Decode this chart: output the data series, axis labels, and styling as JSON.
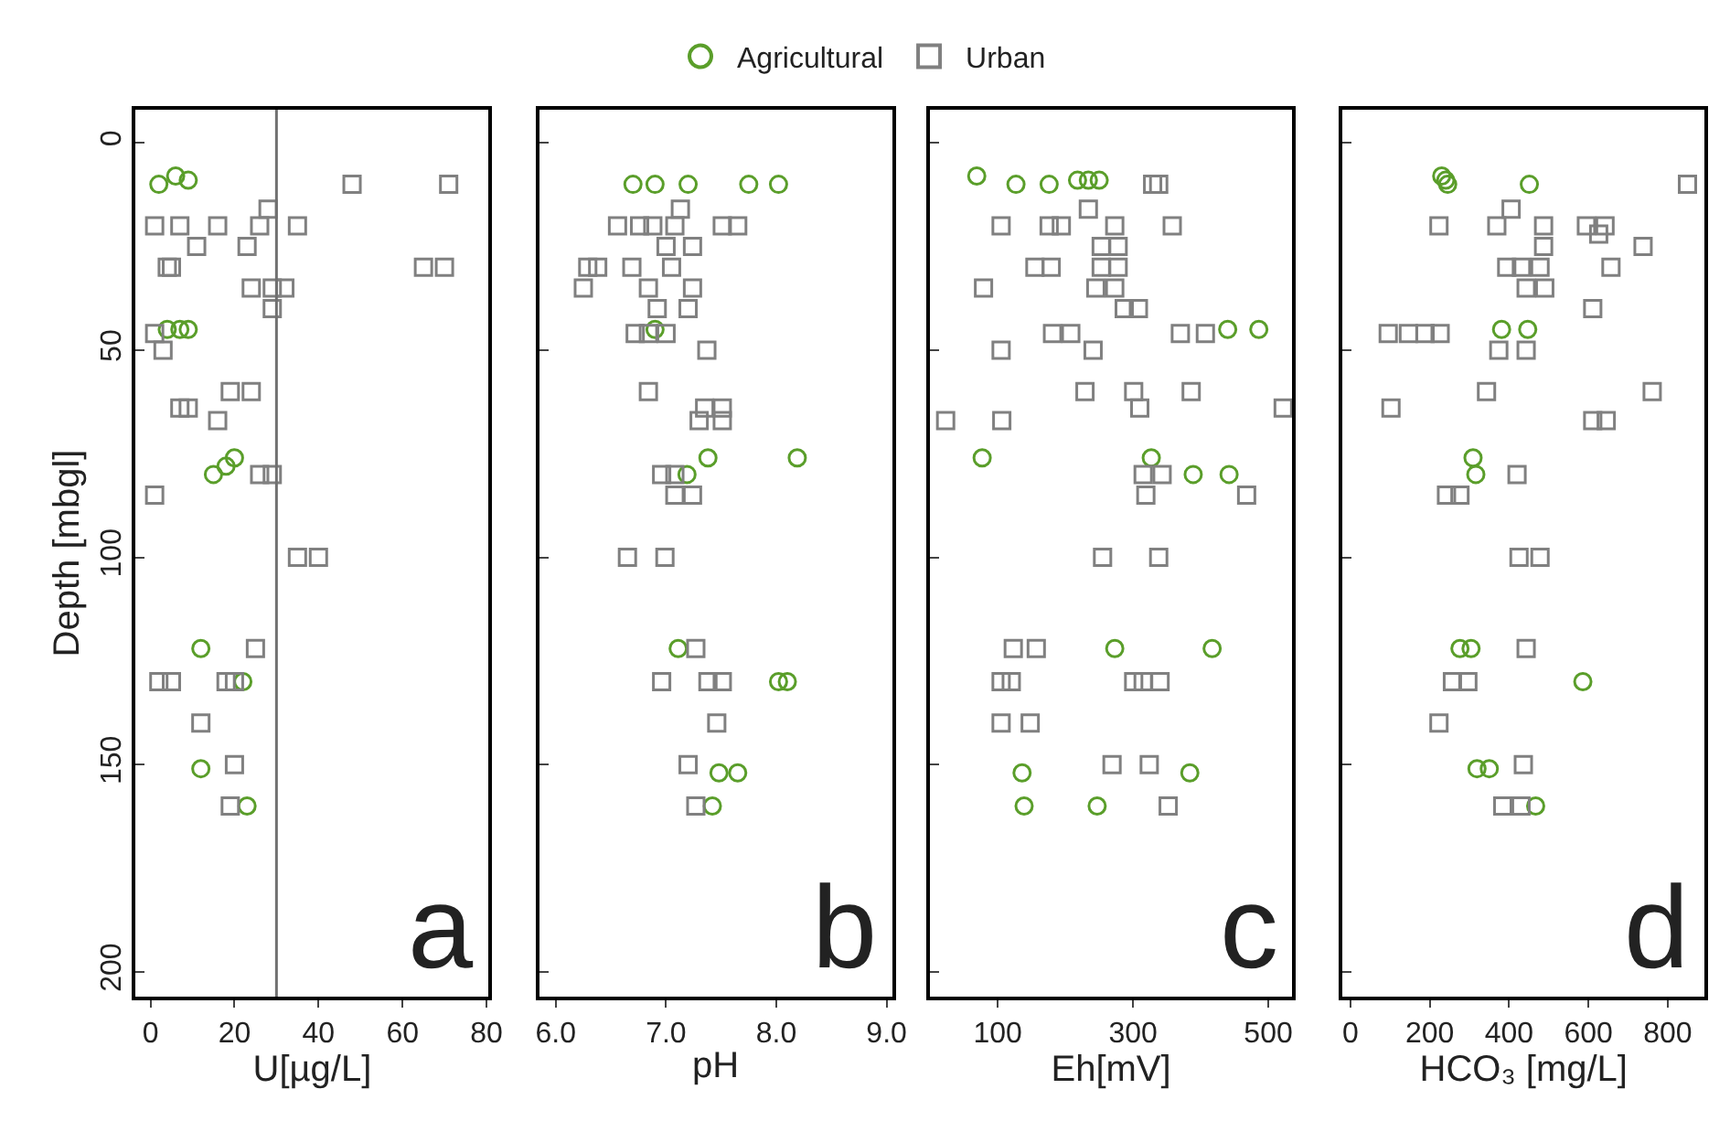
{
  "chart_data": [
    {
      "type": "scatter",
      "xlabel": "U[µg/L]",
      "ylabel": "Depth [mbgl]",
      "legend": "top",
      "xlim": [
        -3.5,
        80.5
      ],
      "xticks": [
        0,
        20,
        40,
        60,
        80
      ],
      "ylim": [
        206,
        -8
      ],
      "yticks": [
        0,
        50,
        100,
        150,
        200
      ],
      "annotations": [
        "a"
      ],
      "ref_lines": [
        {
          "axis": "x",
          "value": 30,
          "color": "#707070",
          "line_style": "solid"
        }
      ],
      "series": [
        {
          "name": "Agricultural",
          "color": "#5a9e2a",
          "marker": "circle",
          "x": [
            2,
            6,
            9,
            4,
            7,
            9,
            15,
            18,
            20,
            12,
            22,
            12,
            23
          ],
          "values": [
            10,
            8,
            9,
            45,
            45,
            45,
            80,
            78,
            76,
            122,
            130,
            151,
            160
          ]
        },
        {
          "name": "Urban",
          "color": "#808080",
          "marker": "square",
          "x": [
            48,
            71,
            28,
            1,
            7,
            16,
            26,
            35,
            11,
            23,
            4,
            5,
            65,
            70,
            24,
            29,
            32,
            29,
            1,
            3,
            19,
            24,
            7,
            9,
            16,
            26,
            29,
            1,
            35,
            40,
            25,
            2,
            5,
            18,
            20,
            12,
            20,
            19
          ],
          "values": [
            10,
            10,
            16,
            20,
            20,
            20,
            20,
            20,
            25,
            25,
            30,
            30,
            30,
            30,
            35,
            35,
            35,
            40,
            46,
            50,
            60,
            60,
            64,
            64,
            67,
            80,
            80,
            85,
            100,
            100,
            122,
            130,
            130,
            130,
            130,
            140,
            150,
            160
          ]
        }
      ]
    },
    {
      "type": "scatter",
      "xlabel": "pH",
      "xlim": [
        5.85,
        9.05
      ],
      "xticks": [
        {
          "value": 6,
          "label": "6.0"
        },
        {
          "value": 7,
          "label": "7.0"
        },
        {
          "value": 8,
          "label": "8.0"
        },
        {
          "value": 9,
          "label": "9.0"
        }
      ],
      "ylim": [
        206,
        -8
      ],
      "yticks": [
        {
          "value": 0,
          "label": null
        },
        {
          "value": 50,
          "label": null
        },
        {
          "value": 100,
          "label": null
        },
        {
          "value": 150,
          "label": null
        },
        {
          "value": 200,
          "label": null
        }
      ],
      "tick_labels": "x",
      "annotations": [
        "b"
      ],
      "series": [
        {
          "name": "Agricultural",
          "color": "#5a9e2a",
          "marker": "circle",
          "x": [
            6.7,
            6.9,
            7.2,
            7.75,
            8.02,
            6.9,
            7.38,
            8.19,
            7.19,
            7.11,
            8.02,
            8.1,
            7.48,
            7.65,
            7.42
          ],
          "values": [
            10,
            10,
            10,
            10,
            10,
            45,
            76,
            76,
            80,
            122,
            130,
            130,
            152,
            152,
            160
          ]
        },
        {
          "name": "Urban",
          "color": "#808080",
          "marker": "square",
          "x": [
            7.13,
            6.56,
            6.76,
            6.88,
            7.08,
            7.51,
            7.65,
            7.0,
            7.24,
            6.29,
            6.38,
            6.69,
            7.05,
            6.25,
            6.84,
            7.24,
            6.92,
            7.2,
            6.72,
            6.84,
            7.0,
            7.37,
            6.84,
            7.35,
            7.51,
            7.3,
            7.51,
            6.96,
            7.08,
            7.08,
            7.24,
            6.65,
            6.99,
            7.27,
            6.96,
            7.38,
            7.51,
            7.46,
            7.2,
            7.27
          ],
          "values": [
            16,
            20,
            20,
            20,
            20,
            20,
            20,
            25,
            25,
            30,
            30,
            30,
            30,
            35,
            35,
            35,
            40,
            40,
            46,
            46,
            46,
            50,
            60,
            64,
            64,
            67,
            67,
            80,
            80,
            85,
            85,
            100,
            100,
            122,
            130,
            130,
            130,
            140,
            150,
            160
          ]
        }
      ]
    },
    {
      "type": "scatter",
      "xlabel": "Eh[mV]",
      "xlim": [
        0,
        535
      ],
      "xticks": [
        100,
        300,
        500
      ],
      "ylim": [
        206,
        -8
      ],
      "yticks": [
        {
          "value": 0,
          "label": null
        },
        {
          "value": 50,
          "label": null
        },
        {
          "value": 100,
          "label": null
        },
        {
          "value": 150,
          "label": null
        },
        {
          "value": 200,
          "label": null
        }
      ],
      "tick_labels": "x",
      "annotations": [
        "c"
      ],
      "series": [
        {
          "name": "Agricultural",
          "color": "#5a9e2a",
          "marker": "circle",
          "x": [
            69,
            127,
            176,
            218,
            234,
            250,
            440,
            486,
            77,
            327,
            389,
            442,
            273,
            417,
            136,
            384,
            139,
            247
          ],
          "values": [
            8,
            10,
            10,
            9,
            9,
            9,
            45,
            45,
            76,
            76,
            80,
            80,
            122,
            122,
            152,
            152,
            160,
            160
          ]
        },
        {
          "name": "Urban",
          "color": "#808080",
          "marker": "square",
          "x": [
            329,
            338,
            234,
            105,
            176,
            194,
            273,
            358,
            253,
            278,
            155,
            179,
            253,
            278,
            79,
            245,
            273,
            287,
            308,
            181,
            208,
            370,
            407,
            105,
            241,
            229,
            301,
            386,
            310,
            522,
            23,
            106,
            315,
            343,
            319,
            468,
            255,
            338,
            123,
            157,
            105,
            120,
            301,
            315,
            340,
            105,
            148,
            269,
            324,
            352
          ],
          "values": [
            10,
            10,
            16,
            20,
            20,
            20,
            20,
            20,
            25,
            25,
            30,
            30,
            30,
            30,
            35,
            35,
            35,
            40,
            40,
            46,
            46,
            46,
            46,
            50,
            50,
            60,
            60,
            60,
            64,
            64,
            67,
            67,
            80,
            80,
            85,
            85,
            100,
            100,
            122,
            122,
            130,
            130,
            130,
            130,
            130,
            140,
            140,
            150,
            150,
            160
          ]
        }
      ]
    },
    {
      "type": "scatter",
      "xlabel": "HCO₃ [mg/L]",
      "xlim": [
        -20,
        893
      ],
      "xticks": [
        0,
        200,
        400,
        600,
        800
      ],
      "ylim": [
        206,
        -8
      ],
      "yticks": [
        {
          "value": 0,
          "label": null
        },
        {
          "value": 50,
          "label": null
        },
        {
          "value": 100,
          "label": null
        },
        {
          "value": 150,
          "label": null
        },
        {
          "value": 200,
          "label": null
        }
      ],
      "tick_labels": "x",
      "annotations": [
        "d"
      ],
      "series": [
        {
          "name": "Agricultural",
          "color": "#5a9e2a",
          "marker": "circle",
          "x": [
            230,
            240,
            245,
            451,
            381,
            447,
            309,
            316,
            276,
            304,
            586,
            319,
            350,
            467
          ],
          "values": [
            8,
            9,
            10,
            10,
            45,
            45,
            76,
            80,
            122,
            122,
            130,
            151,
            151,
            160
          ]
        },
        {
          "name": "Urban",
          "color": "#808080",
          "marker": "square",
          "x": [
            850,
            405,
            223,
            369,
            487,
            595,
            642,
            626,
            487,
            738,
            394,
            431,
            478,
            657,
            443,
            490,
            611,
            95,
            146,
            188,
            226,
            374,
            443,
            343,
            761,
            102,
            611,
            645,
            420,
            242,
            276,
            425,
            478,
            443,
            257,
            296,
            223,
            436,
            384,
            430
          ],
          "values": [
            10,
            16,
            20,
            20,
            20,
            20,
            20,
            22,
            25,
            25,
            30,
            30,
            30,
            30,
            35,
            35,
            40,
            46,
            46,
            46,
            46,
            50,
            50,
            60,
            60,
            64,
            67,
            67,
            80,
            85,
            85,
            100,
            100,
            122,
            130,
            130,
            140,
            150,
            160,
            160
          ]
        }
      ]
    }
  ]
}
